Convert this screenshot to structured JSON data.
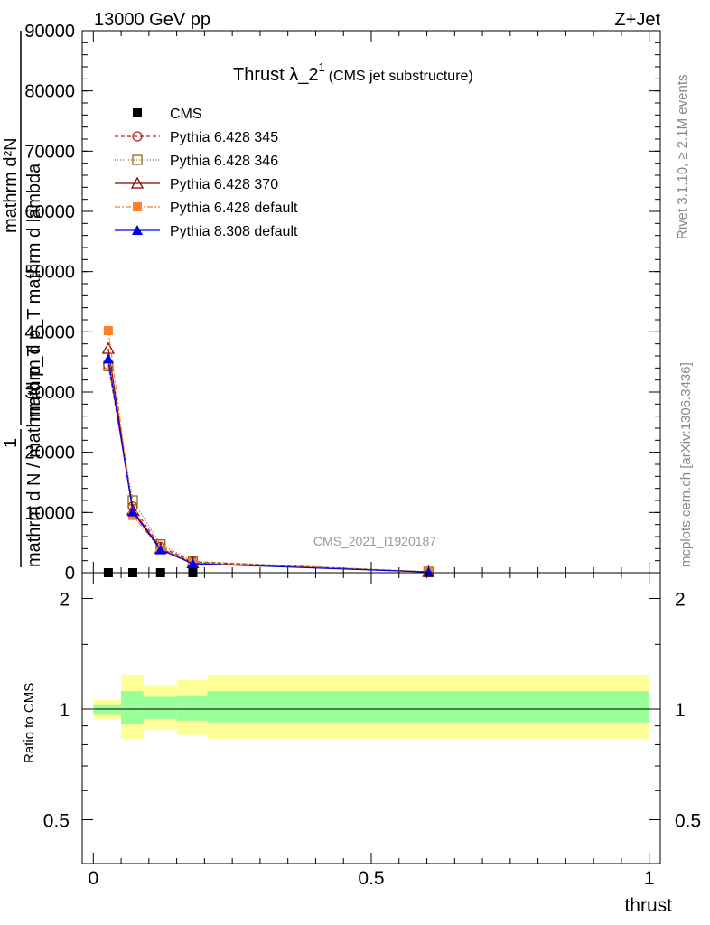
{
  "header": {
    "energy": "13000 GeV pp",
    "process": "Z+Jet"
  },
  "side_labels": {
    "rivet": "Rivet 3.1.10, ≥ 2.1M events",
    "mcplots": "mcplots.cern.ch [arXiv:1306.3436]"
  },
  "watermark": "CMS_2021_I1920187",
  "chart_data": [
    {
      "type": "line",
      "panel": "main",
      "title_main": "Thrust λ_2",
      "title_sup": "1",
      "title_note": "(CMS jet substructure)",
      "ylabel_parts": [
        "1",
        "mathrm d N",
        "mathrm dN",
        "mathrm d p_T mathrm d lambda"
      ],
      "ylabel_lines": [
        "mathrm d²N",
        "mathrm d p_T mathrm d lambda",
        "mathrm d N / mathrm d p_T",
        "1"
      ],
      "xlim": [
        -0.02,
        1.02
      ],
      "ylim": [
        0,
        90000
      ],
      "y_ticks": [
        0,
        10000,
        20000,
        30000,
        40000,
        50000,
        60000,
        70000,
        80000,
        90000
      ],
      "y_tick_labels": [
        "0",
        "10000",
        "20000",
        "30000",
        "40000",
        "50000",
        "60000",
        "70000",
        "80000",
        "90000"
      ],
      "legend_position": "top-left",
      "series": [
        {
          "name": "CMS",
          "color": "#000000",
          "marker": "square-filled",
          "dash": "none",
          "x": [
            0.027,
            0.071,
            0.121,
            0.179,
            0.603
          ],
          "y": [
            0,
            0,
            0,
            0,
            0
          ]
        },
        {
          "name": "Pythia 6.428 345",
          "color": "#b22222",
          "marker": "circle-open",
          "dash": "4,3",
          "x": [
            0.027,
            0.071,
            0.121,
            0.179,
            0.603
          ],
          "y": [
            34500,
            11000,
            4300,
            1800,
            150
          ]
        },
        {
          "name": "Pythia 6.428 346",
          "color": "#8b6914",
          "marker": "square-open",
          "dash": "1,2",
          "x": [
            0.027,
            0.071,
            0.121,
            0.179,
            0.603
          ],
          "y": [
            34300,
            12000,
            4700,
            1900,
            160
          ]
        },
        {
          "name": "Pythia 6.428 370",
          "color": "#8b0000",
          "marker": "triangle-open",
          "dash": "none",
          "x": [
            0.027,
            0.071,
            0.121,
            0.179,
            0.603
          ],
          "y": [
            37200,
            10400,
            4000,
            1600,
            140
          ]
        },
        {
          "name": "Pythia 6.428 default",
          "color": "#ff7f2a",
          "marker": "square-filled",
          "dash": "6,2,2,2",
          "x": [
            0.027,
            0.071,
            0.121,
            0.179,
            0.603
          ],
          "y": [
            40200,
            9500,
            3900,
            1600,
            130
          ]
        },
        {
          "name": "Pythia 8.308 default",
          "color": "#0000ee",
          "marker": "triangle-filled",
          "dash": "none",
          "x": [
            0.027,
            0.071,
            0.121,
            0.179,
            0.603
          ],
          "y": [
            35500,
            10100,
            3800,
            1500,
            120
          ]
        }
      ]
    },
    {
      "type": "area",
      "panel": "ratio",
      "xlabel": "thrust",
      "ylabel": "Ratio to CMS",
      "xlim": [
        -0.02,
        1.02
      ],
      "ylim": [
        0.38,
        2.35
      ],
      "y_log": true,
      "x_ticks": [
        0,
        0.5,
        1
      ],
      "x_tick_labels": [
        "0",
        "0.5",
        "1"
      ],
      "y_ticks": [
        0.5,
        1,
        2
      ],
      "y_tick_labels": [
        "0.5",
        "1",
        "2"
      ],
      "reference_line": 1,
      "bands": [
        {
          "name": "outer",
          "color": "#ffff99",
          "bins": [
            [
              0.0,
              0.05,
              0.94,
              1.06
            ],
            [
              0.05,
              0.09,
              0.83,
              1.24
            ],
            [
              0.09,
              0.15,
              0.88,
              1.16
            ],
            [
              0.15,
              0.205,
              0.85,
              1.2
            ],
            [
              0.205,
              1.0,
              0.83,
              1.24
            ]
          ]
        },
        {
          "name": "inner",
          "color": "#99ff99",
          "bins": [
            [
              0.0,
              0.05,
              0.97,
              1.03
            ],
            [
              0.05,
              0.09,
              0.91,
              1.12
            ],
            [
              0.09,
              0.15,
              0.94,
              1.08
            ],
            [
              0.15,
              0.205,
              0.93,
              1.09
            ],
            [
              0.205,
              1.0,
              0.92,
              1.12
            ]
          ]
        }
      ]
    }
  ]
}
